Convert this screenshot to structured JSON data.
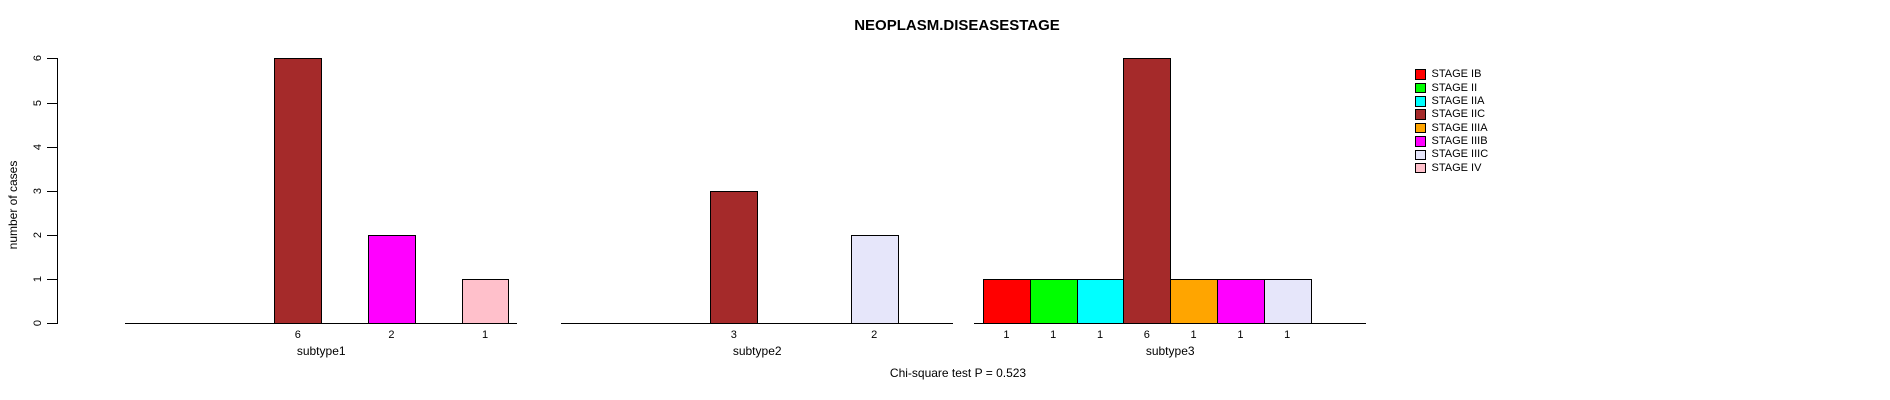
{
  "chart_data": {
    "type": "bar",
    "title": "NEOPLASM.DISEASESTAGE",
    "ylabel": "number of cases",
    "footnote": "Chi-square test P = 0.523",
    "ylim": [
      0,
      6
    ],
    "yticks": [
      0,
      1,
      2,
      3,
      4,
      5,
      6
    ],
    "grid": false,
    "legend_position": "right",
    "bar_border_color": "#000000",
    "stages": [
      {
        "name": "STAGE IB",
        "color": "#FF0000"
      },
      {
        "name": "STAGE II",
        "color": "#00FF00"
      },
      {
        "name": "STAGE IIA",
        "color": "#00FFFF"
      },
      {
        "name": "STAGE IIC",
        "color": "#A52A2A"
      },
      {
        "name": "STAGE IIIA",
        "color": "#FFA500"
      },
      {
        "name": "STAGE IIIB",
        "color": "#FF00FF"
      },
      {
        "name": "STAGE IIIC",
        "color": "#E6E6FA"
      },
      {
        "name": "STAGE IV",
        "color": "#FFC0CB"
      }
    ],
    "groups": [
      {
        "label": "subtype1",
        "values": [
          0,
          0,
          0,
          6,
          0,
          2,
          0,
          1
        ]
      },
      {
        "label": "subtype2",
        "values": [
          0,
          0,
          0,
          3,
          0,
          0,
          2,
          0
        ]
      },
      {
        "label": "subtype3",
        "values": [
          1,
          1,
          1,
          6,
          1,
          1,
          1,
          0
        ]
      }
    ]
  }
}
